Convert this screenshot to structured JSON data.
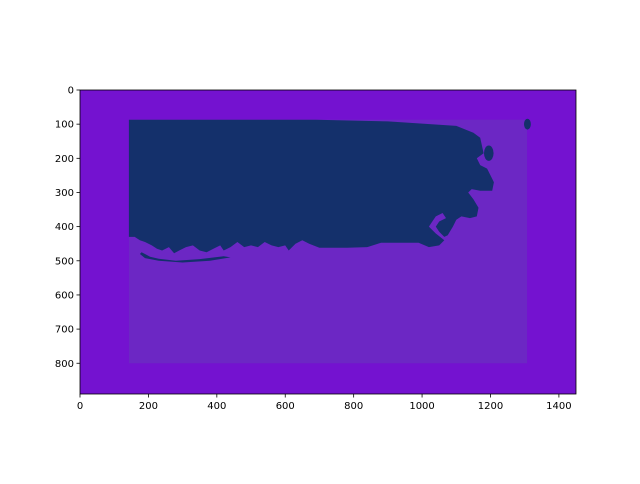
{
  "colors": {
    "outer_fill": "#7412d0",
    "inner_fill": "#6c27c4",
    "mask_fill": "#14306b",
    "background": "#ffffff"
  },
  "chart_data": {
    "type": "heatmap",
    "title": "",
    "xlabel": "",
    "ylabel": "",
    "x_axis": {
      "ticks": [
        "0",
        "200",
        "400",
        "600",
        "800",
        "1000",
        "1200",
        "1400"
      ]
    },
    "y_axis": {
      "ticks": [
        "0",
        "100",
        "200",
        "300",
        "400",
        "500",
        "600",
        "700",
        "800"
      ],
      "inverted": true
    },
    "xlim": [
      0,
      1450
    ],
    "ylim": [
      890,
      0
    ],
    "grid": false,
    "regions": [
      {
        "name": "outer-border",
        "x_range": [
          0,
          1450
        ],
        "y_range": [
          0,
          890
        ]
      },
      {
        "name": "inner-rectangle",
        "x_range": [
          143,
          1307
        ],
        "y_range": [
          87,
          800
        ]
      }
    ],
    "mask_outline": [
      [
        143,
        87
      ],
      [
        690,
        87
      ],
      [
        900,
        92
      ],
      [
        1100,
        105
      ],
      [
        1150,
        125
      ],
      [
        1170,
        140
      ],
      [
        1180,
        185
      ],
      [
        1160,
        200
      ],
      [
        1170,
        220
      ],
      [
        1190,
        230
      ],
      [
        1200,
        250
      ],
      [
        1210,
        270
      ],
      [
        1205,
        295
      ],
      [
        1170,
        295
      ],
      [
        1145,
        290
      ],
      [
        1135,
        300
      ],
      [
        1150,
        320
      ],
      [
        1165,
        345
      ],
      [
        1160,
        370
      ],
      [
        1140,
        375
      ],
      [
        1115,
        370
      ],
      [
        1100,
        380
      ],
      [
        1090,
        400
      ],
      [
        1075,
        425
      ],
      [
        1065,
        430
      ],
      [
        1050,
        415
      ],
      [
        1040,
        400
      ],
      [
        1050,
        385
      ],
      [
        1070,
        375
      ],
      [
        1060,
        360
      ],
      [
        1040,
        370
      ],
      [
        1030,
        385
      ],
      [
        1020,
        400
      ],
      [
        1040,
        420
      ],
      [
        1065,
        440
      ],
      [
        1050,
        455
      ],
      [
        1020,
        460
      ],
      [
        990,
        447
      ],
      [
        880,
        447
      ],
      [
        840,
        460
      ],
      [
        780,
        462
      ],
      [
        700,
        462
      ],
      [
        670,
        450
      ],
      [
        650,
        440
      ],
      [
        630,
        450
      ],
      [
        610,
        470
      ],
      [
        600,
        455
      ],
      [
        580,
        460
      ],
      [
        560,
        455
      ],
      [
        540,
        445
      ],
      [
        520,
        460
      ],
      [
        500,
        455
      ],
      [
        480,
        460
      ],
      [
        460,
        445
      ],
      [
        440,
        460
      ],
      [
        420,
        470
      ],
      [
        410,
        455
      ],
      [
        390,
        465
      ],
      [
        370,
        475
      ],
      [
        350,
        470
      ],
      [
        330,
        455
      ],
      [
        310,
        460
      ],
      [
        290,
        470
      ],
      [
        275,
        478
      ],
      [
        260,
        460
      ],
      [
        240,
        470
      ],
      [
        225,
        465
      ],
      [
        210,
        455
      ],
      [
        190,
        445
      ],
      [
        175,
        440
      ],
      [
        160,
        430
      ],
      [
        143,
        430
      ]
    ],
    "mask_islands": [
      {
        "cx": 1308,
        "cy": 100,
        "r": 10
      },
      {
        "cx": 1195,
        "cy": 185,
        "r": 14
      }
    ],
    "mask_sliver": [
      [
        190,
        492
      ],
      [
        230,
        500
      ],
      [
        300,
        505
      ],
      [
        380,
        500
      ],
      [
        440,
        490
      ],
      [
        420,
        487
      ],
      [
        350,
        495
      ],
      [
        280,
        500
      ],
      [
        230,
        494
      ],
      [
        205,
        488
      ],
      [
        180,
        475
      ],
      [
        175,
        480
      ]
    ]
  }
}
